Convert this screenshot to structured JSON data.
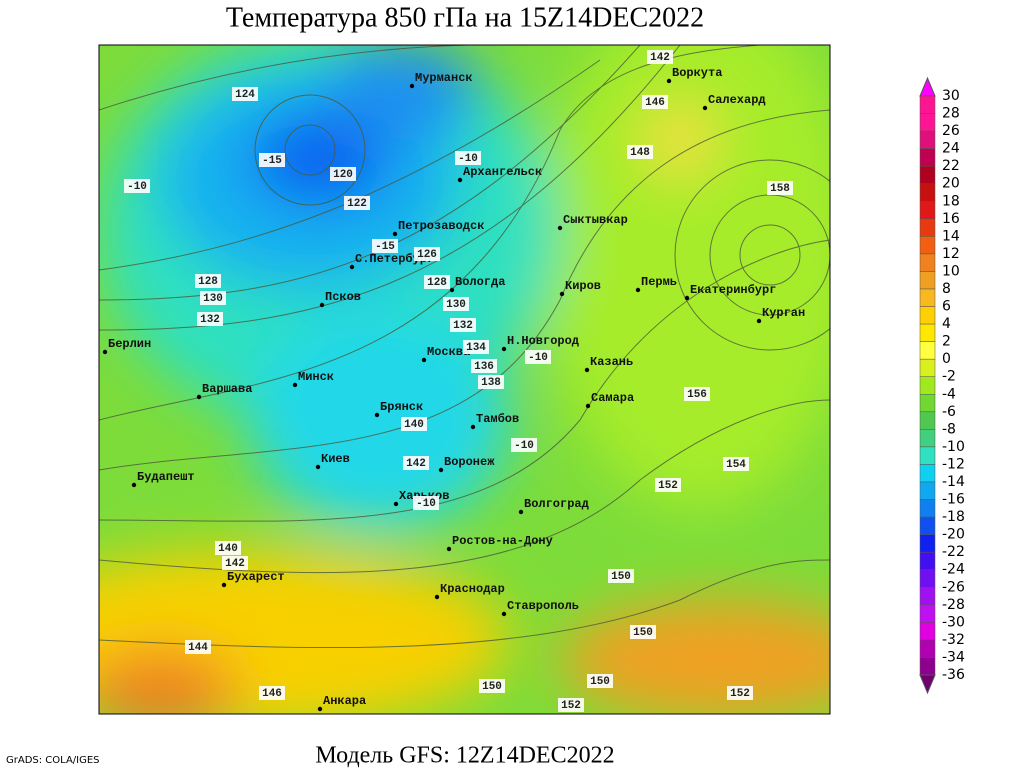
{
  "title": "Температура 850 гПа на 15Z14DEC2022",
  "subtitle": "Модель GFS: 12Z14DEC2022",
  "credits": "GrADS: COLA/IGES",
  "cities": [
    "Мурманск",
    "Воркута",
    "Салехард",
    "Архангельск",
    "Петрозаводск",
    "Сыктывкар",
    "С.Петербург",
    "Вологда",
    "Киров",
    "Пермь",
    "Екатеринбург",
    "Курган",
    "Псков",
    "Н.Новгород",
    "Берлин",
    "Москва",
    "Казань",
    "Минск",
    "Варшава",
    "Самара",
    "Брянск",
    "Тамбов",
    "Киев",
    "Воронеж",
    "Будапешт",
    "Харьков",
    "Волгоград",
    "Ростов-на-Дону",
    "Бухарест",
    "Краснодар",
    "Ставрополь",
    "Анкара"
  ],
  "height_labels": [
    124,
    120,
    122,
    126,
    128,
    128,
    130,
    130,
    132,
    132,
    134,
    136,
    138,
    140,
    142,
    142,
    146,
    148,
    158,
    156,
    154,
    152,
    150,
    150,
    150,
    150,
    152,
    152,
    146,
    144,
    140,
    142
  ],
  "temperature_labels": [
    -10,
    -15,
    -10,
    -15,
    -10,
    -10,
    -10
  ],
  "colorbar": {
    "values": [
      30,
      28,
      26,
      24,
      22,
      20,
      18,
      16,
      14,
      12,
      10,
      8,
      6,
      4,
      2,
      0,
      -2,
      -4,
      -6,
      -8,
      -10,
      -12,
      -14,
      -16,
      -18,
      -20,
      -22,
      -24,
      -26,
      -28,
      -30,
      -32,
      -34,
      -36
    ],
    "colors": [
      "#ff00ff",
      "#ff1493",
      "#e0107a",
      "#c00050",
      "#b00020",
      "#c81010",
      "#e01818",
      "#e83a10",
      "#f06010",
      "#f08020",
      "#f0a020",
      "#f8b820",
      "#ffd000",
      "#ffe800",
      "#ffff40",
      "#d8f020",
      "#a0e820",
      "#70d830",
      "#50c850",
      "#40d080",
      "#30e0c0",
      "#10d0f0",
      "#10a8f0",
      "#1080f0",
      "#1050f0",
      "#1020f0",
      "#4010f0",
      "#7010f0",
      "#a010f0",
      "#c010f0",
      "#e000e0",
      "#b000b0",
      "#900090",
      "#700070"
    ]
  }
}
